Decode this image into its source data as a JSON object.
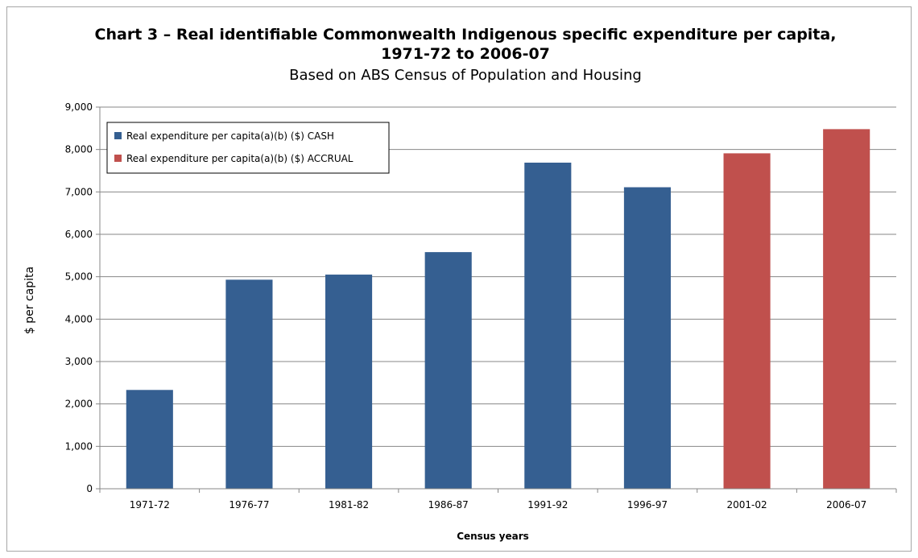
{
  "chart_data": {
    "type": "bar",
    "title_line1": "Chart 3 – Real identifiable Commonwealth Indigenous specific expenditure per capita,",
    "title_line2": "1971-72 to 2006-07",
    "subtitle": "Based on ABS Census of Population and Housing",
    "xlabel": "Census years",
    "ylabel": "$ per capita",
    "ylim": [
      0,
      9000
    ],
    "yticks": [
      0,
      1000,
      2000,
      3000,
      4000,
      5000,
      6000,
      7000,
      8000,
      9000
    ],
    "ytick_labels": [
      "0",
      "1,000",
      "2,000",
      "3,000",
      "4,000",
      "5,000",
      "6,000",
      "7,000",
      "8,000",
      "9,000"
    ],
    "grid": true,
    "legend_position": "top-left",
    "categories": [
      "1971-72",
      "1976-77",
      "1981-82",
      "1986-87",
      "1991-92",
      "1996-97",
      "2001-02",
      "2006-07"
    ],
    "series": [
      {
        "name": "Real expenditure per capita(a)(b) ($) CASH",
        "color": "#355f91",
        "values": [
          2330,
          4930,
          5050,
          5580,
          7690,
          7110,
          null,
          null
        ]
      },
      {
        "name": "Real expenditure per capita(a)(b) ($) ACCRUAL",
        "color": "#c0504d",
        "values": [
          null,
          null,
          null,
          null,
          null,
          null,
          7910,
          8480
        ]
      }
    ]
  }
}
